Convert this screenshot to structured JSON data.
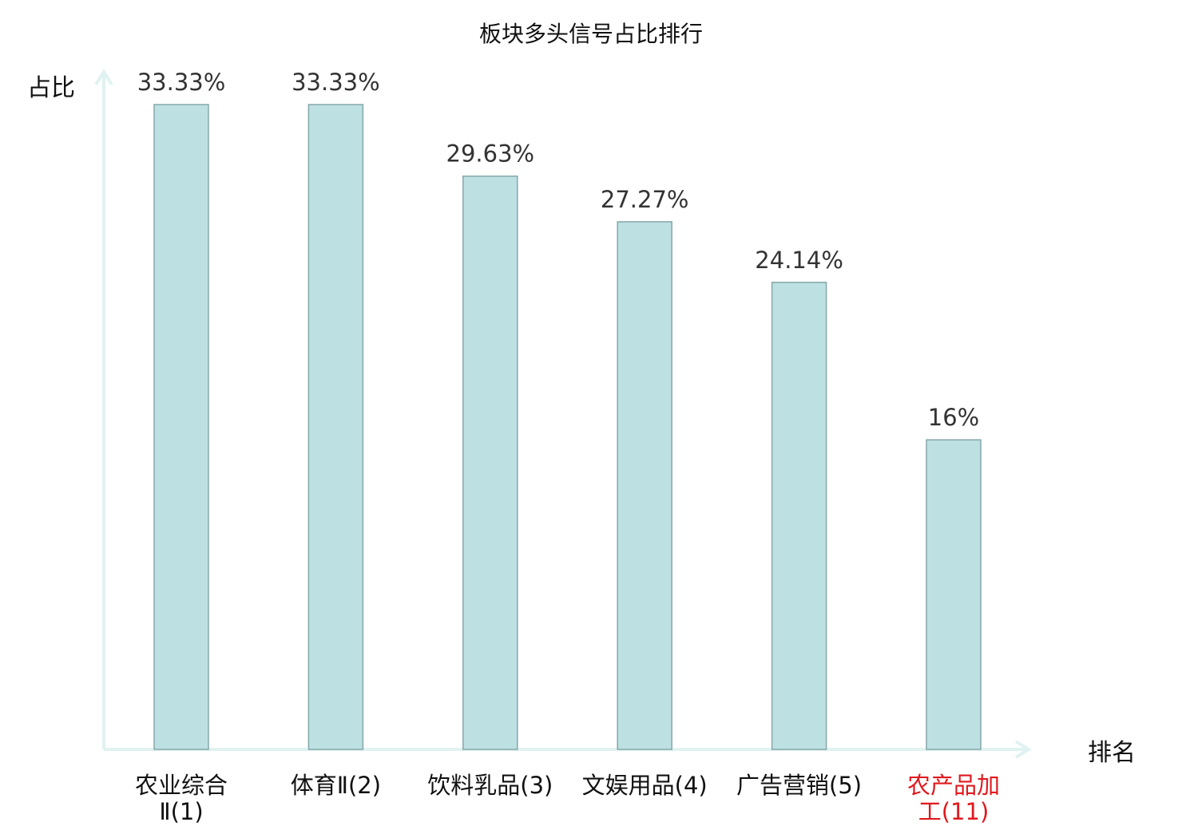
{
  "chart_data": {
    "type": "bar",
    "title": "板块多头信号占比排行",
    "ylabel": "占比",
    "xlabel": "排名",
    "categories": [
      [
        "农业综合",
        "Ⅱ(1)"
      ],
      [
        "体育Ⅱ(2)"
      ],
      [
        "饮料乳品(3)"
      ],
      [
        "文娱用品(4)"
      ],
      [
        "广告营销(5)"
      ],
      [
        "农产品加",
        "工(11)"
      ]
    ],
    "values": [
      33.33,
      33.33,
      29.63,
      27.27,
      24.14,
      16
    ],
    "value_labels": [
      "33.33%",
      "33.33%",
      "29.63%",
      "27.27%",
      "24.14%",
      "16%"
    ],
    "highlight_index": 5,
    "ylim": [
      0,
      33.33
    ],
    "grid": false,
    "colors": {
      "bar_fill": "#bde0e3",
      "bar_stroke": "#86a7a9",
      "axis": "#e0f2f1",
      "text": "#333333",
      "label": "#111111",
      "highlight": "#e0191e"
    }
  }
}
